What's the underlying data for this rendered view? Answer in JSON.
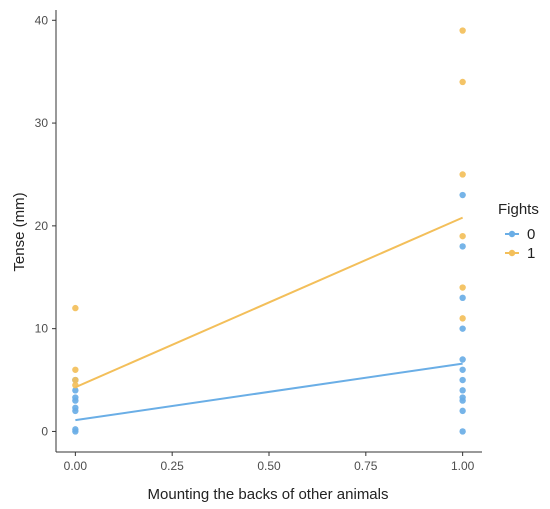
{
  "chart_data": {
    "type": "scatter",
    "title": "",
    "xlabel": "Mounting the backs of other animals",
    "ylabel": "Tense (mm)",
    "xlim": [
      -0.05,
      1.05
    ],
    "ylim": [
      -2,
      41
    ],
    "x_ticks": [
      0,
      0.25,
      0.5,
      0.75,
      1
    ],
    "x_tick_labels": [
      "0.00",
      "0.25",
      "0.50",
      "0.75",
      "1.00"
    ],
    "y_ticks": [
      0,
      10,
      20,
      30,
      40
    ],
    "y_tick_labels": [
      "0",
      "10",
      "20",
      "30",
      "40"
    ],
    "grid": false,
    "legend": {
      "title": "Fights",
      "placement": "right",
      "entries": [
        "0",
        "1"
      ]
    },
    "series": [
      {
        "name": "0",
        "color": "#6aaee6",
        "points": [
          {
            "x": 0,
            "y": 0
          },
          {
            "x": 0,
            "y": 0.2
          },
          {
            "x": 0,
            "y": 2
          },
          {
            "x": 0,
            "y": 2.3
          },
          {
            "x": 0,
            "y": 3
          },
          {
            "x": 0,
            "y": 3.3
          },
          {
            "x": 0,
            "y": 4
          },
          {
            "x": 0,
            "y": 5
          },
          {
            "x": 1,
            "y": 0
          },
          {
            "x": 1,
            "y": 2
          },
          {
            "x": 1,
            "y": 3
          },
          {
            "x": 1,
            "y": 3.3
          },
          {
            "x": 1,
            "y": 4
          },
          {
            "x": 1,
            "y": 5
          },
          {
            "x": 1,
            "y": 6
          },
          {
            "x": 1,
            "y": 7
          },
          {
            "x": 1,
            "y": 10
          },
          {
            "x": 1,
            "y": 13
          },
          {
            "x": 1,
            "y": 18
          },
          {
            "x": 1,
            "y": 23
          }
        ],
        "fit": [
          {
            "x": 0,
            "y": 1.1
          },
          {
            "x": 1,
            "y": 6.6
          }
        ]
      },
      {
        "name": "1",
        "color": "#f3bf5a",
        "points": [
          {
            "x": 0,
            "y": 4.5
          },
          {
            "x": 0,
            "y": 5
          },
          {
            "x": 0,
            "y": 6
          },
          {
            "x": 0,
            "y": 12
          },
          {
            "x": 1,
            "y": 11
          },
          {
            "x": 1,
            "y": 14
          },
          {
            "x": 1,
            "y": 19
          },
          {
            "x": 1,
            "y": 25
          },
          {
            "x": 1,
            "y": 34
          },
          {
            "x": 1,
            "y": 39
          }
        ],
        "fit": [
          {
            "x": 0,
            "y": 4.3
          },
          {
            "x": 1,
            "y": 20.8
          }
        ]
      }
    ]
  }
}
